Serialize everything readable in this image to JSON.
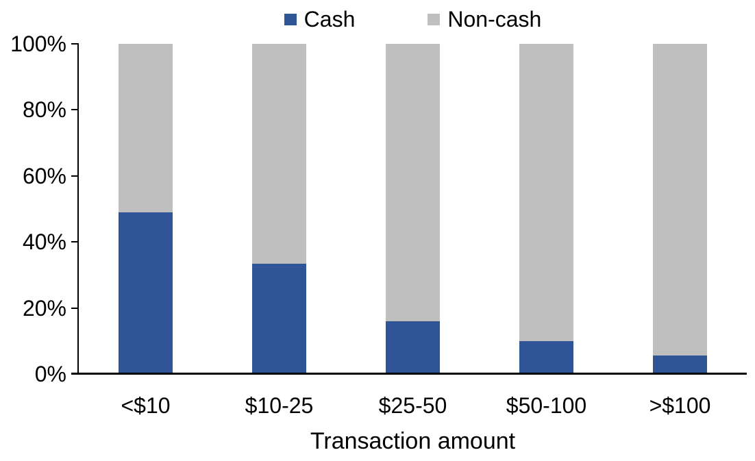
{
  "chart_data": {
    "type": "bar",
    "variant": "stacked-100-percent",
    "title": "",
    "xlabel": "Transaction amount",
    "ylabel": "",
    "categories": [
      "<$10",
      "$10-25",
      "$25-50",
      "$50-100",
      ">$100"
    ],
    "series": [
      {
        "name": "Cash",
        "color": "#2F5597",
        "values": [
          49,
          33.5,
          16,
          10,
          5.5
        ]
      },
      {
        "name": "Non-cash",
        "color": "#BFBFBF",
        "values": [
          51,
          66.5,
          84,
          90,
          94.5
        ]
      }
    ],
    "ylim": [
      0,
      100
    ],
    "yticks": [
      0,
      20,
      40,
      60,
      80,
      100
    ],
    "ytick_labels": [
      "0%",
      "20%",
      "40%",
      "60%",
      "80%",
      "100%"
    ],
    "grid": false,
    "legend_position": "top-center"
  },
  "colors": {
    "axis": "#000000",
    "text": "#000000",
    "background": "#FFFFFF",
    "cash": "#2F5597",
    "noncash": "#BFBFBF"
  }
}
